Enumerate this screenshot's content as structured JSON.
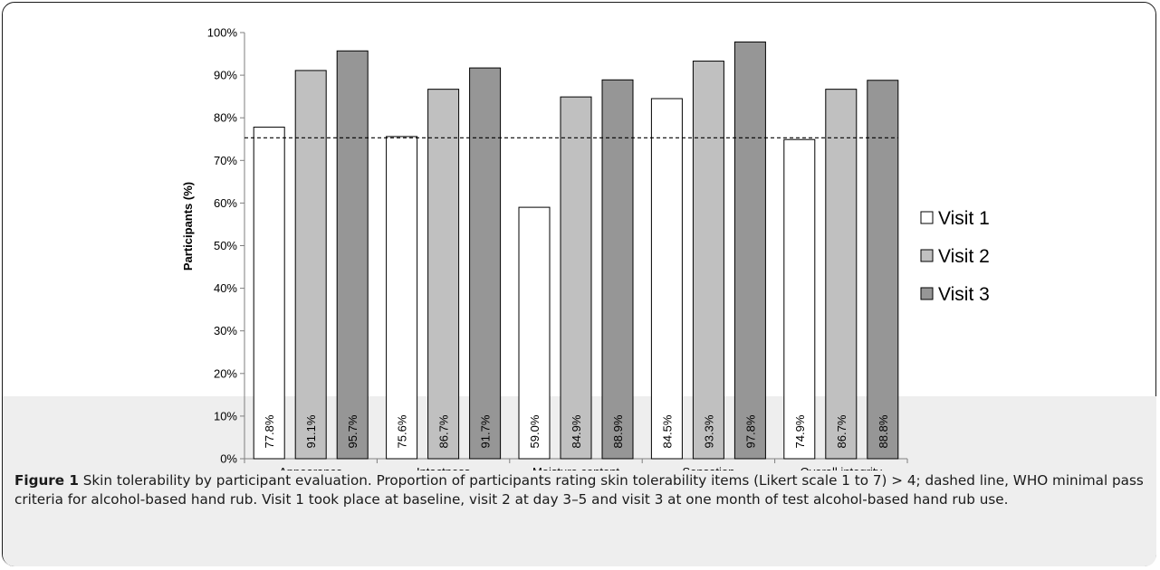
{
  "figure": {
    "label": "Figure 1",
    "caption": "Skin tolerability by participant evaluation. Proportion of participants rating skin tolerability items (Likert scale 1 to 7) > 4; dashed line, WHO minimal pass criteria for alcohol-based hand rub. Visit 1 took place at baseline, visit 2 at day 3–5 and visit 3 at one month of test alcohol-based hand rub use."
  },
  "chart_data": {
    "type": "bar",
    "ylabel": "Participants (%)",
    "xlabel": "",
    "ylim": [
      0,
      100
    ],
    "yticks": [
      "0%",
      "10%",
      "20%",
      "30%",
      "40%",
      "50%",
      "60%",
      "70%",
      "80%",
      "90%",
      "100%"
    ],
    "categories": [
      "Appearance",
      "Intactness",
      "Moisture content",
      "Sensation",
      "Overall integrity"
    ],
    "series": [
      {
        "name": "Visit 1",
        "values": [
          77.8,
          75.6,
          59.0,
          84.5,
          74.9
        ],
        "labels": [
          "77.8%",
          "75.6%",
          "59.0%",
          "84.5%",
          "74.9%"
        ],
        "color": "#ffffff"
      },
      {
        "name": "Visit 2",
        "values": [
          91.1,
          86.7,
          84.9,
          93.3,
          86.7
        ],
        "labels": [
          "91.1%",
          "86.7%",
          "84.9%",
          "93.3%",
          "86.7%"
        ],
        "color": "#c0c0c0"
      },
      {
        "name": "Visit 3",
        "values": [
          95.7,
          91.7,
          88.9,
          97.8,
          88.8
        ],
        "labels": [
          "95.7%",
          "91.7%",
          "88.9%",
          "97.8%",
          "88.8%"
        ],
        "color": "#969696"
      }
    ],
    "reference_line": {
      "value": 75.3,
      "style": "dashed"
    },
    "legend_position": "right",
    "grid": false
  }
}
